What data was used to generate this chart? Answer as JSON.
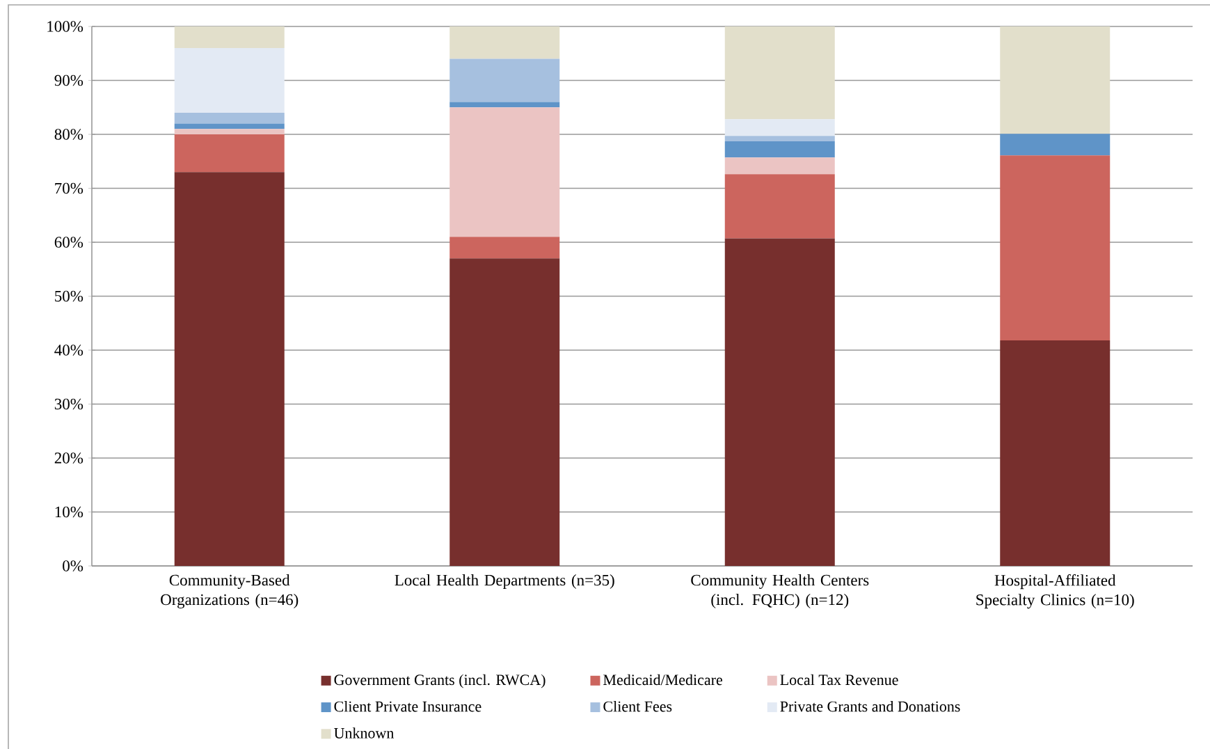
{
  "chart_data": {
    "type": "bar",
    "stacked": true,
    "categories": [
      "Community-Based Organizations (n=46)",
      "Local Health Departments (n=35)",
      "Community Health Centers (incl. FQHC) (n=12)",
      "Hospital-Affiliated Specialty Clinics (n=10)"
    ],
    "series": [
      {
        "name": "Government Grants (incl. RWCA)",
        "color": "#772f2d",
        "values": [
          73,
          57,
          60.7,
          41.8
        ]
      },
      {
        "name": "Medicaid/Medicare",
        "color": "#cc655e",
        "values": [
          7,
          4,
          11.9,
          34.3
        ]
      },
      {
        "name": "Local Tax Revenue",
        "color": "#ebc4c3",
        "values": [
          1,
          24,
          3.1,
          0
        ]
      },
      {
        "name": "Client Private Insurance",
        "color": "#5f94c8",
        "values": [
          1,
          1,
          3.0,
          4
        ]
      },
      {
        "name": "Client Fees",
        "color": "#a6c0df",
        "values": [
          2,
          8,
          1.0,
          0
        ]
      },
      {
        "name": "Private Grants and Donations",
        "color": "#e3eaf4",
        "values": [
          12,
          0,
          3.1,
          0
        ]
      },
      {
        "name": "Unknown",
        "color": "#e2dfcb",
        "values": [
          4,
          6,
          17.2,
          19.9
        ]
      }
    ],
    "ylim": [
      0,
      100
    ],
    "yticks": [
      {
        "value": 0,
        "label": "0%"
      },
      {
        "value": 10,
        "label": "10%"
      },
      {
        "value": 20,
        "label": "20%"
      },
      {
        "value": 30,
        "label": "30%"
      },
      {
        "value": 40,
        "label": "40%"
      },
      {
        "value": 50,
        "label": "50%"
      },
      {
        "value": 60,
        "label": "60%"
      },
      {
        "value": 70,
        "label": "70%"
      },
      {
        "value": 80,
        "label": "80%"
      },
      {
        "value": 90,
        "label": "90%"
      },
      {
        "value": 100,
        "label": "100%"
      }
    ],
    "grid": "y",
    "legend": "bottom"
  }
}
